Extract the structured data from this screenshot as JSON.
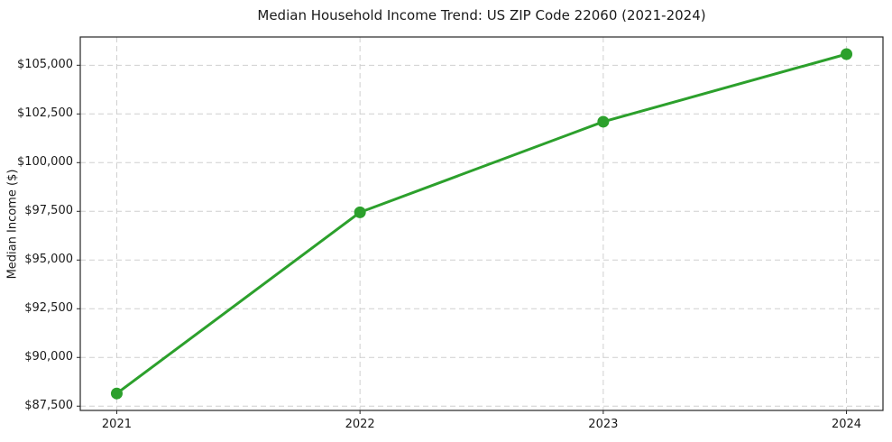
{
  "chart_data": {
    "type": "line",
    "title": "Median Household Income Trend: US ZIP Code 22060 (2021-2024)",
    "xlabel": "",
    "ylabel": "Median Income ($)",
    "x": [
      2021,
      2022,
      2023,
      2024
    ],
    "x_tick_labels": [
      "2021",
      "2022",
      "2023",
      "2024"
    ],
    "series": [
      {
        "name": "Median household income",
        "values": [
          88150,
          97450,
          102100,
          105570
        ]
      }
    ],
    "y_ticks": [
      87500,
      90000,
      92500,
      95000,
      97500,
      100000,
      102500,
      105000
    ],
    "y_tick_labels": [
      "$87,500",
      "$90,000",
      "$92,500",
      "$95,000",
      "$97,500",
      "$100,000",
      "$102,500",
      "$105,000"
    ],
    "xlim": [
      2020.85,
      2024.15
    ],
    "ylim": [
      87280,
      106450
    ],
    "grid": true,
    "grid_style": "dashed",
    "legend": "none",
    "line_color": "#2ca02c",
    "marker_color": "#2ca02c",
    "marker": "circle"
  }
}
